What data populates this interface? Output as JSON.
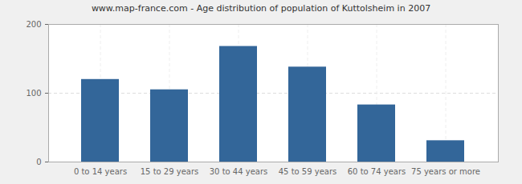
{
  "chart_data": {
    "type": "bar",
    "title": "www.map-france.com - Age distribution of population of Kuttolsheim in 2007",
    "categories": [
      "0 to 14 years",
      "15 to 29 years",
      "30 to 44 years",
      "45 to 59 years",
      "60 to 74 years",
      "75 years or more"
    ],
    "values": [
      120,
      105,
      168,
      138,
      83,
      31
    ],
    "color": "#336699",
    "ylim": [
      0,
      200
    ],
    "yticks": [
      0,
      100,
      200
    ],
    "grid": true
  }
}
